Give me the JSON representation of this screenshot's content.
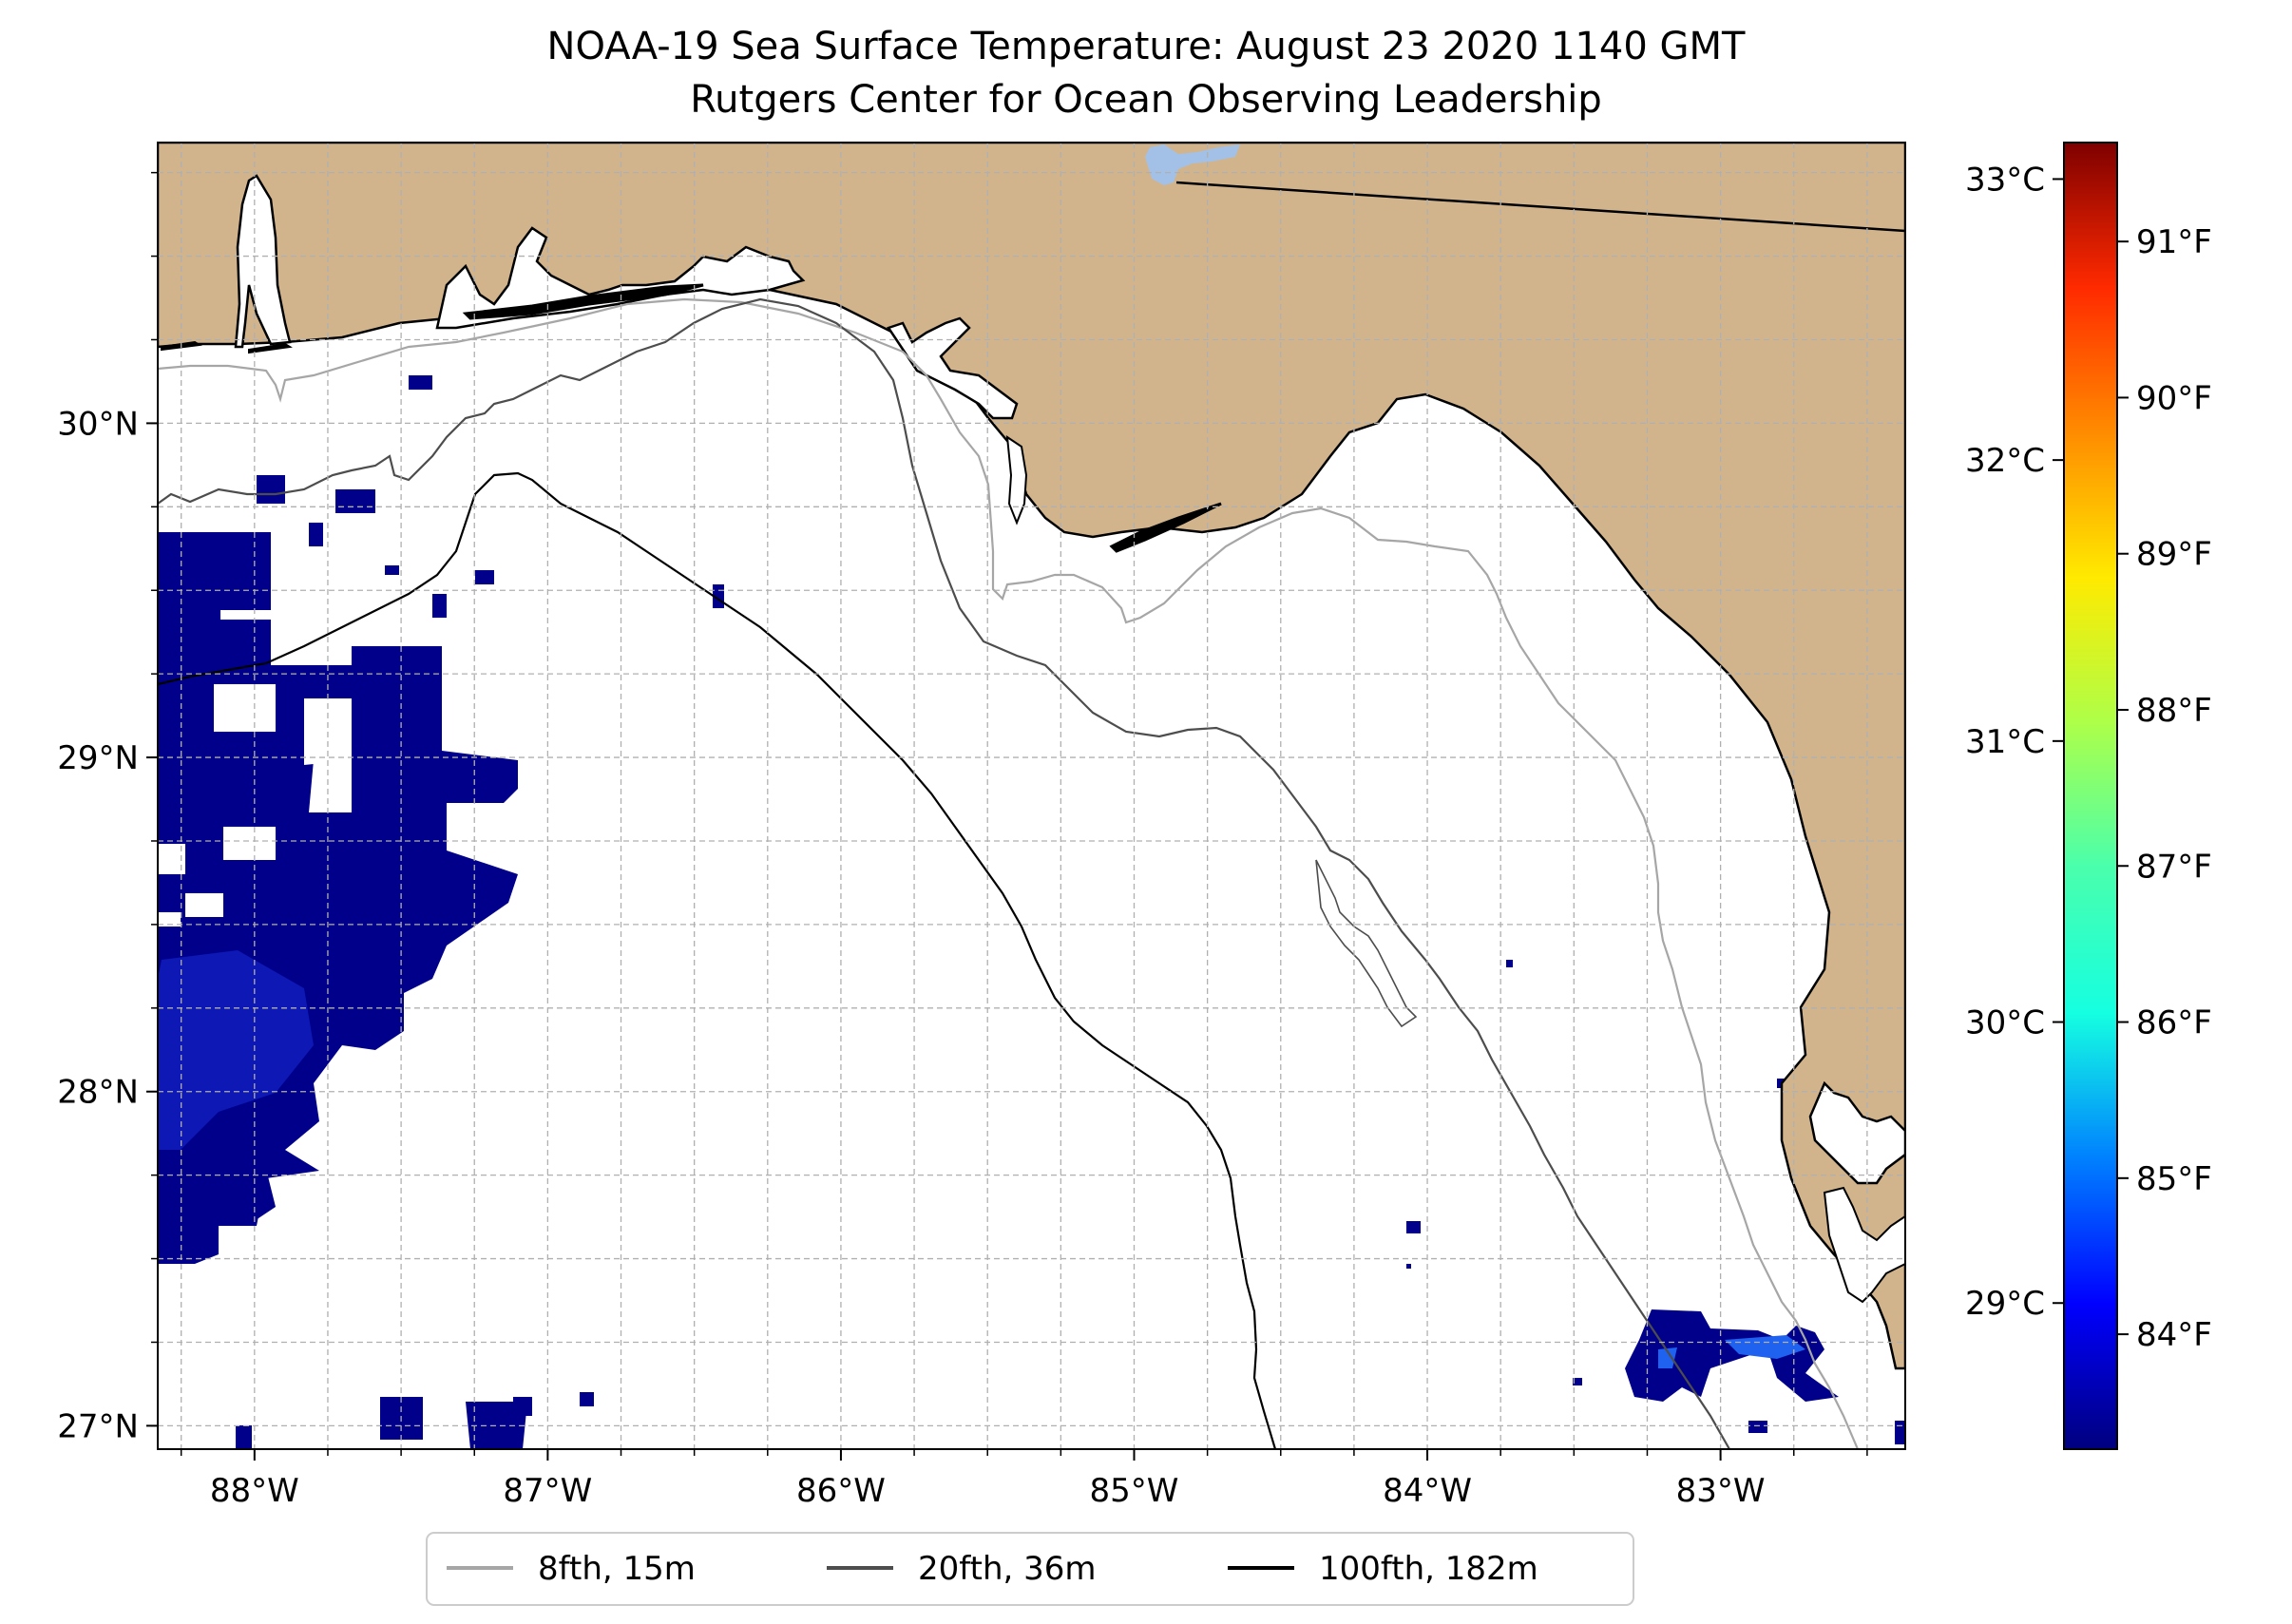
{
  "title": "NOAA-19 Sea Surface Temperature: August 23 2020 1140 GMT",
  "subtitle": "Rutgers Center for Ocean Observing Leadership",
  "map": {
    "lon_range": [
      -88.33,
      -82.37
    ],
    "lat_range": [
      26.93,
      30.84
    ],
    "lon_ticks": [
      {
        "value": -88,
        "label": "88°W"
      },
      {
        "value": -87,
        "label": "87°W"
      },
      {
        "value": -86,
        "label": "86°W"
      },
      {
        "value": -85,
        "label": "85°W"
      },
      {
        "value": -84,
        "label": "84°W"
      },
      {
        "value": -83,
        "label": "83°W"
      }
    ],
    "lat_ticks": [
      {
        "value": 27,
        "label": "27°N"
      },
      {
        "value": 28,
        "label": "28°N"
      },
      {
        "value": 29,
        "label": "29°N"
      },
      {
        "value": 30,
        "label": "30°N"
      }
    ],
    "grid": true,
    "land_color": "#d2b48c",
    "ocean_color": "#ffffff",
    "sst_low_color": "#00008b",
    "sst_mid_color": "#1a2cd8",
    "lake_color": "#a3c0e6"
  },
  "legend": {
    "placement": "below-center",
    "items": [
      {
        "label": "8fth, 15m",
        "color": "#a6a6a6"
      },
      {
        "label": "20fth, 36m",
        "color": "#4d4d4d"
      },
      {
        "label": "100fth, 182m",
        "color": "#000000"
      }
    ]
  },
  "colorbar": {
    "range_c": [
      28.48,
      33.13
    ],
    "celsius_ticks": [
      {
        "value": 29,
        "label": "29°C"
      },
      {
        "value": 30,
        "label": "30°C"
      },
      {
        "value": 31,
        "label": "31°C"
      },
      {
        "value": 32,
        "label": "32°C"
      },
      {
        "value": 33,
        "label": "33°C"
      }
    ],
    "fahrenheit_ticks": [
      {
        "value": 84,
        "label": "84°F"
      },
      {
        "value": 85,
        "label": "85°F"
      },
      {
        "value": 86,
        "label": "86°F"
      },
      {
        "value": 87,
        "label": "87°F"
      },
      {
        "value": 88,
        "label": "88°F"
      },
      {
        "value": 89,
        "label": "89°F"
      },
      {
        "value": 90,
        "label": "90°F"
      },
      {
        "value": 91,
        "label": "91°F"
      }
    ],
    "colors": [
      "#00007f",
      "#0000ff",
      "#0080ff",
      "#15ffe1",
      "#49ffad",
      "#adff49",
      "#ffea00",
      "#ff8c00",
      "#ff2a00",
      "#7f0000"
    ]
  }
}
